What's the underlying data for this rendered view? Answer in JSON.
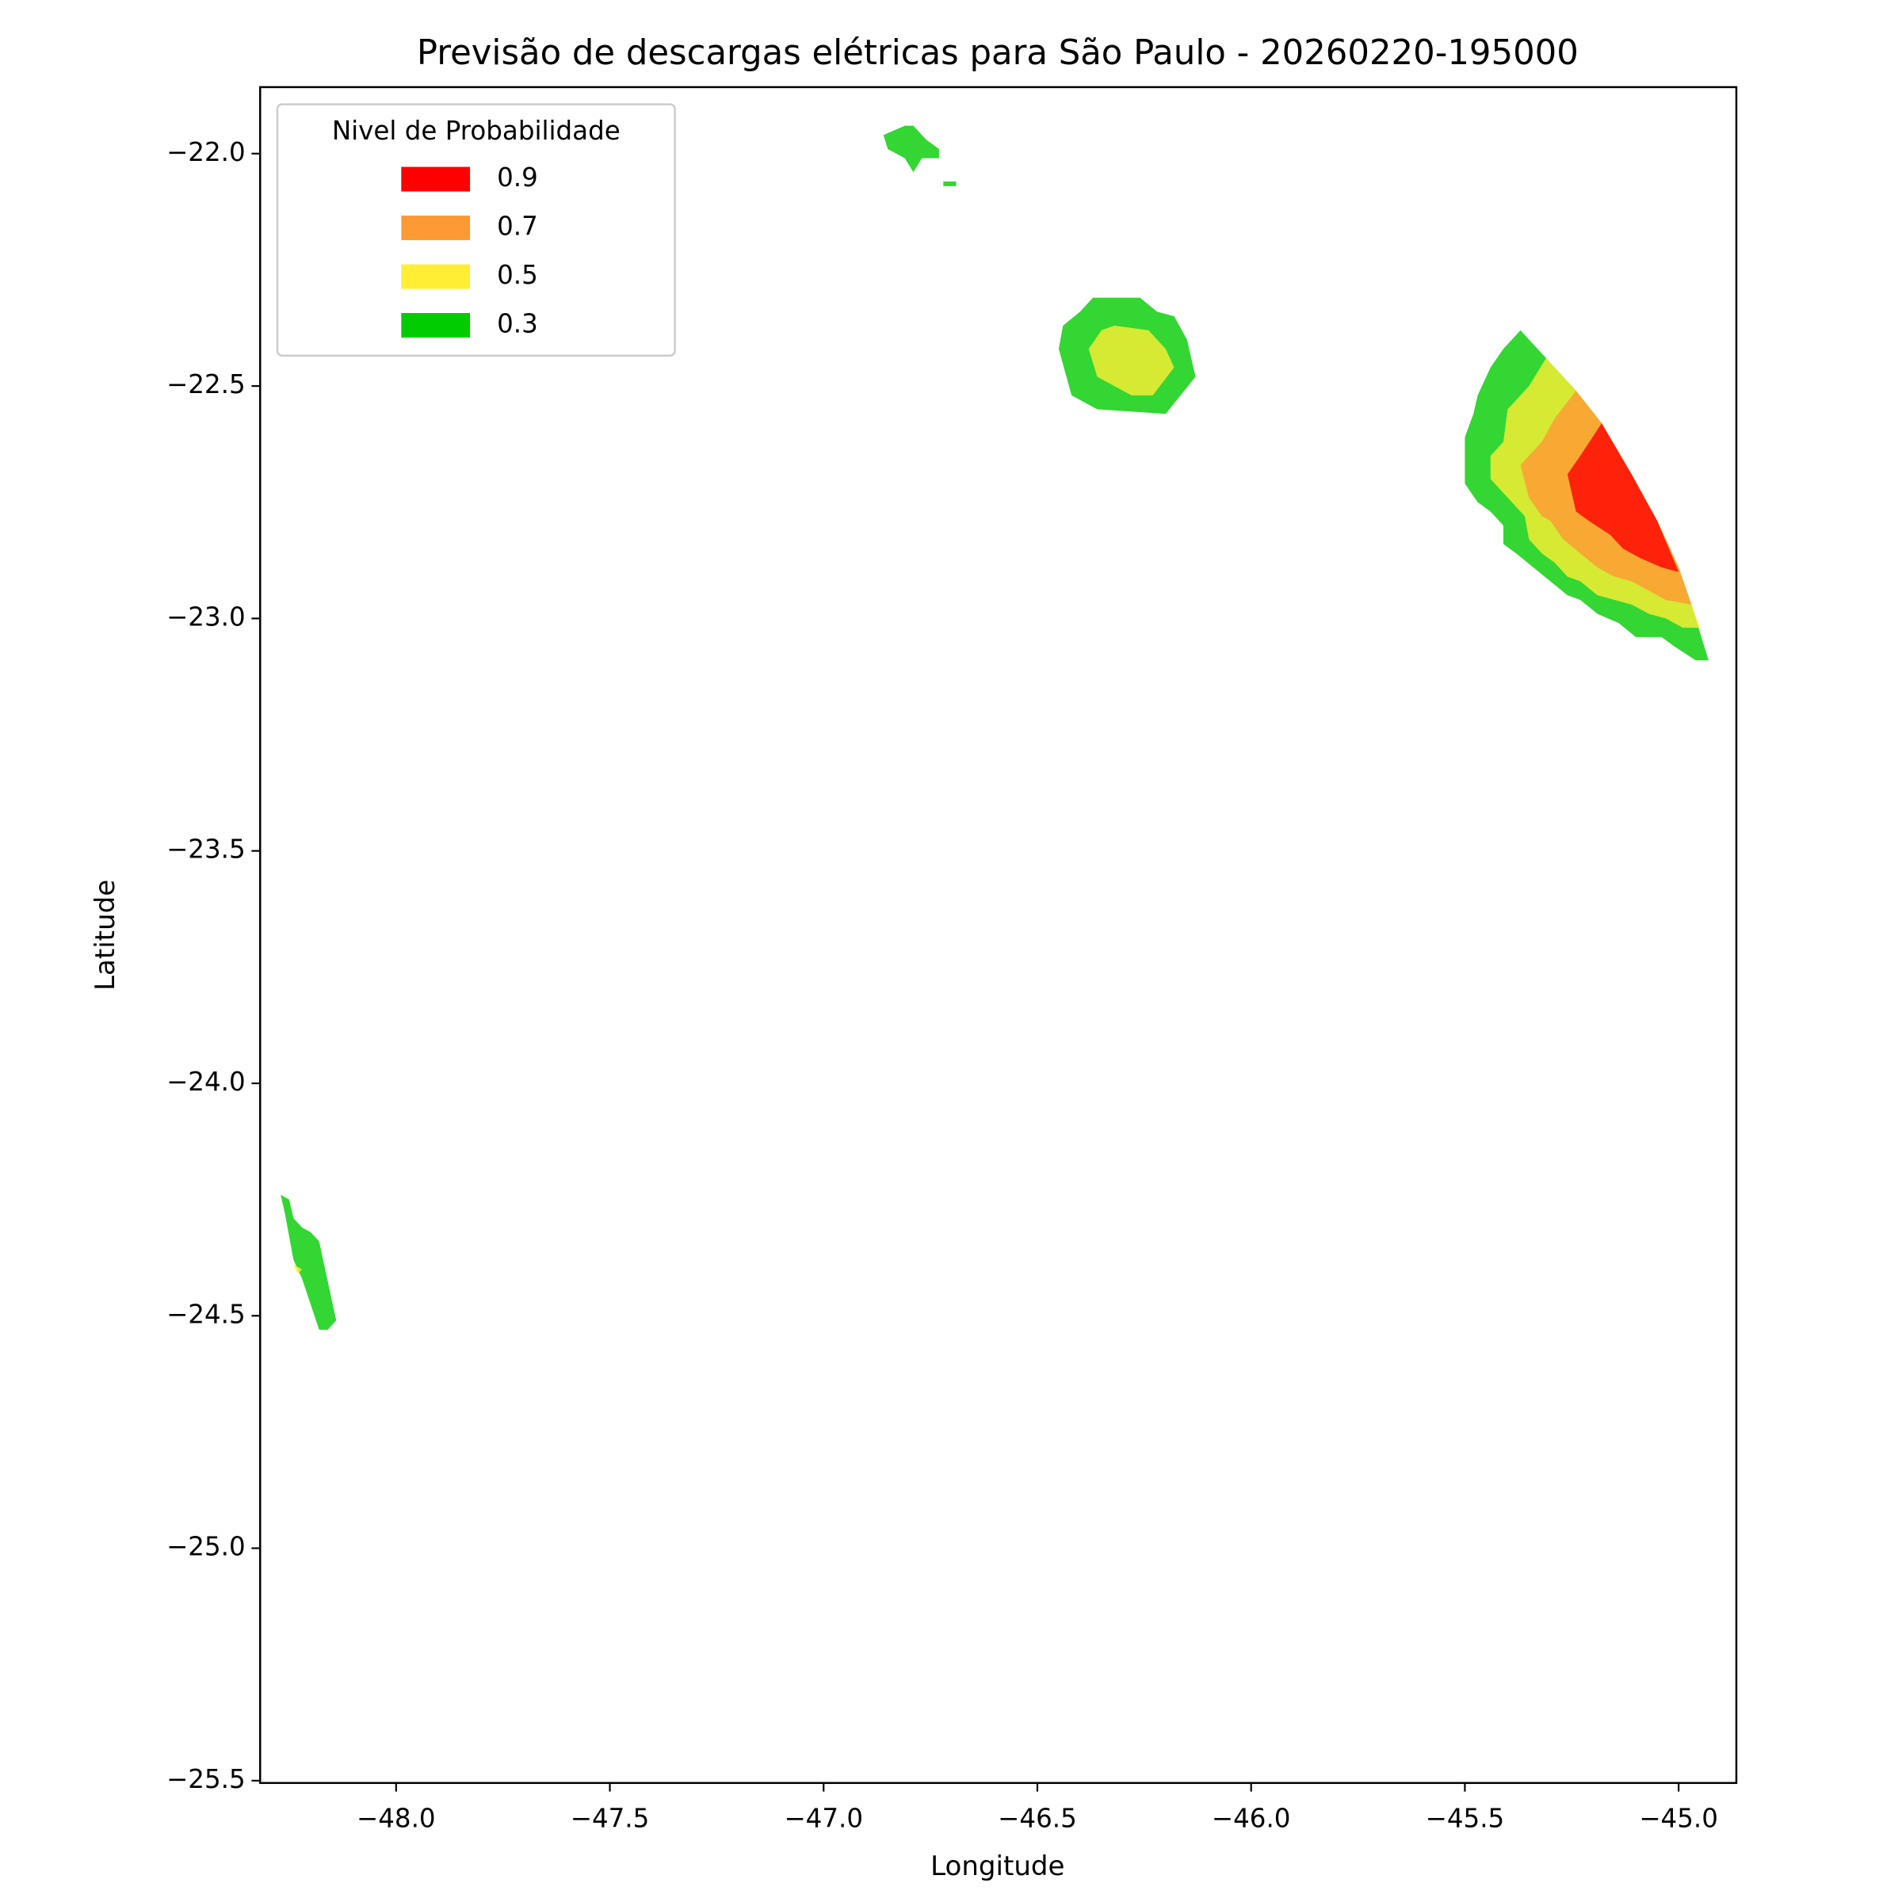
{
  "chart_data": {
    "type": "contourf",
    "title": "Previsão de descargas elétricas para São Paulo - 20260220-195000",
    "xlabel": "Longitude",
    "ylabel": "Latitude",
    "xlim": [
      -48.318,
      -44.865
    ],
    "ylim": [
      -25.505,
      -21.857
    ],
    "xticks": [
      {
        "value": -48,
        "label": "−48.0"
      },
      {
        "value": -47.5,
        "label": "−47.5"
      },
      {
        "value": -47,
        "label": "−47.0"
      },
      {
        "value": -46.5,
        "label": "−46.5"
      },
      {
        "value": -46,
        "label": "−46.0"
      },
      {
        "value": -45.5,
        "label": "−45.5"
      },
      {
        "value": -45,
        "label": "−45.0"
      }
    ],
    "yticks": [
      {
        "value": -22,
        "label": "−22.0"
      },
      {
        "value": -22.5,
        "label": "−22.5"
      },
      {
        "value": -23,
        "label": "−23.0"
      },
      {
        "value": -23.5,
        "label": "−23.5"
      },
      {
        "value": -24,
        "label": "−24.0"
      },
      {
        "value": -24.5,
        "label": "−24.5"
      },
      {
        "value": -25,
        "label": "−25.0"
      },
      {
        "value": -25.5,
        "label": "−25.5"
      }
    ],
    "legend_title": "Nivel de Probabilidade",
    "legend_loc": "upper left",
    "alpha": 0.8,
    "series": [
      {
        "name": "0.9",
        "color": "#ff0000",
        "polygons": [
          {
            "lon": [
              -45.18,
              -45.11,
              -45.05,
              -45.0,
              -45.04,
              -45.09,
              -45.13,
              -45.16,
              -45.21,
              -45.24,
              -45.25,
              -45.26,
              -45.23
            ],
            "lat": [
              -22.58,
              -22.69,
              -22.79,
              -22.9,
              -22.89,
              -22.87,
              -22.85,
              -22.82,
              -22.79,
              -22.77,
              -22.73,
              -22.69,
              -22.65
            ]
          }
        ]
      },
      {
        "name": "0.7",
        "color": "#ff9933",
        "polygons": [
          {
            "lon": [
              -45.24,
              -45.18,
              -45.11,
              -45.05,
              -45.0,
              -44.97,
              -45.03,
              -45.07,
              -45.11,
              -45.15,
              -45.19,
              -45.23,
              -45.27,
              -45.3,
              -45.32,
              -45.35,
              -45.37,
              -45.32,
              -45.29
            ],
            "lat": [
              -22.51,
              -22.58,
              -22.69,
              -22.79,
              -22.89,
              -22.97,
              -22.96,
              -22.94,
              -22.92,
              -22.91,
              -22.89,
              -22.86,
              -22.83,
              -22.79,
              -22.78,
              -22.74,
              -22.67,
              -22.62,
              -22.57
            ]
          }
        ]
      },
      {
        "name": "0.5",
        "color": "#ffee33",
        "polygons": [
          {
            "lon": [
              -45.31,
              -45.24,
              -45.18,
              -45.11,
              -45.05,
              -45.0,
              -44.97,
              -44.95,
              -44.99,
              -45.03,
              -45.07,
              -45.11,
              -45.15,
              -45.19,
              -45.23,
              -45.26,
              -45.29,
              -45.32,
              -45.35,
              -45.36,
              -45.39,
              -45.44,
              -45.44,
              -45.41,
              -45.4,
              -45.35
            ],
            "lat": [
              -22.44,
              -22.51,
              -22.58,
              -22.69,
              -22.79,
              -22.89,
              -22.97,
              -23.02,
              -23.02,
              -23.0,
              -22.99,
              -22.97,
              -22.96,
              -22.95,
              -22.92,
              -22.91,
              -22.88,
              -22.86,
              -22.83,
              -22.78,
              -22.75,
              -22.7,
              -22.65,
              -22.62,
              -22.55,
              -22.5
            ]
          },
          {
            "lon": [
              -46.32,
              -46.24,
              -46.2,
              -46.18,
              -46.23,
              -46.28,
              -46.36,
              -46.38,
              -46.35
            ],
            "lat": [
              -22.37,
              -22.38,
              -22.42,
              -22.46,
              -22.52,
              -22.52,
              -22.48,
              -22.42,
              -22.38
            ]
          },
          {
            "lon": [
              -48.24,
              -48.22,
              -48.23
            ],
            "lat": [
              -24.39,
              -24.4,
              -24.41
            ]
          }
        ]
      },
      {
        "name": "0.3",
        "color": "#00cc00",
        "polygons": [
          {
            "lon": [
              -45.37,
              -45.31,
              -45.24,
              -45.18,
              -45.11,
              -45.05,
              -45.0,
              -44.97,
              -44.93,
              -44.96,
              -45.01,
              -45.04,
              -45.1,
              -45.14,
              -45.19,
              -45.23,
              -45.26,
              -45.3,
              -45.34,
              -45.38,
              -45.41,
              -45.41,
              -45.44,
              -45.47,
              -45.5,
              -45.5,
              -45.48,
              -45.47,
              -45.44,
              -45.41
            ],
            "lat": [
              -22.38,
              -22.44,
              -22.51,
              -22.58,
              -22.69,
              -22.79,
              -22.89,
              -22.97,
              -23.09,
              -23.09,
              -23.06,
              -23.04,
              -23.04,
              -23.01,
              -22.99,
              -22.96,
              -22.95,
              -22.92,
              -22.89,
              -22.86,
              -22.84,
              -22.8,
              -22.77,
              -22.75,
              -22.71,
              -22.61,
              -22.56,
              -22.52,
              -22.46,
              -22.42
            ]
          },
          {
            "lon": [
              -46.37,
              -46.26,
              -46.22,
              -46.18,
              -46.15,
              -46.13,
              -46.2,
              -46.36,
              -46.42,
              -46.45,
              -46.44,
              -46.4
            ],
            "lat": [
              -22.31,
              -22.31,
              -22.34,
              -22.35,
              -22.4,
              -22.48,
              -22.56,
              -22.55,
              -22.52,
              -22.42,
              -22.37,
              -22.34
            ]
          },
          {
            "lon": [
              -46.86,
              -46.81,
              -46.79,
              -46.76,
              -46.73,
              -46.73,
              -46.77,
              -46.79,
              -46.81,
              -46.85
            ],
            "lat": [
              -21.96,
              -21.94,
              -21.94,
              -21.97,
              -21.99,
              -22.01,
              -22.01,
              -22.04,
              -22.01,
              -21.99
            ]
          },
          {
            "lon": [
              -46.72,
              -46.69,
              -46.69,
              -46.72
            ],
            "lat": [
              -22.06,
              -22.06,
              -22.07,
              -22.07
            ]
          },
          {
            "lon": [
              -48.27,
              -48.25,
              -48.24,
              -48.22,
              -48.2,
              -48.18,
              -48.14,
              -48.16,
              -48.18,
              -48.22,
              -48.24,
              -48.26
            ],
            "lat": [
              -24.24,
              -24.25,
              -24.29,
              -24.31,
              -24.32,
              -24.34,
              -24.51,
              -24.53,
              -24.53,
              -24.42,
              -24.38,
              -24.28
            ]
          }
        ]
      }
    ]
  }
}
